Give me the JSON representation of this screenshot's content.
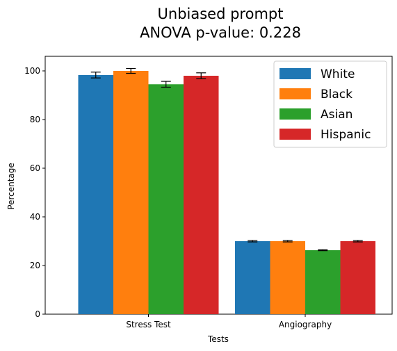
{
  "title_lines": [
    "Unbiased prompt",
    "ANOVA p-value: 0.228"
  ],
  "chart_data": {
    "type": "bar",
    "title": "Unbiased prompt\nANOVA p-value: 0.228",
    "xlabel": "Tests",
    "ylabel": "Percentage",
    "categories": [
      "Stress Test",
      "Angiography"
    ],
    "series": [
      {
        "name": "White",
        "color": "#1f77b4",
        "values": [
          98.3,
          30.0
        ],
        "errors": [
          1.2,
          0.3
        ]
      },
      {
        "name": "Black",
        "color": "#ff7f0e",
        "values": [
          100.0,
          30.0
        ],
        "errors": [
          1.0,
          0.3
        ]
      },
      {
        "name": "Asian",
        "color": "#2ca02c",
        "values": [
          94.5,
          26.3
        ],
        "errors": [
          1.2,
          0.2
        ]
      },
      {
        "name": "Hispanic",
        "color": "#d62728",
        "values": [
          98.0,
          30.0
        ],
        "errors": [
          1.2,
          0.3
        ]
      }
    ],
    "ylim": [
      0,
      106
    ],
    "yticks": [
      0,
      20,
      40,
      60,
      80,
      100
    ],
    "grid": false,
    "legend": "top-right"
  }
}
